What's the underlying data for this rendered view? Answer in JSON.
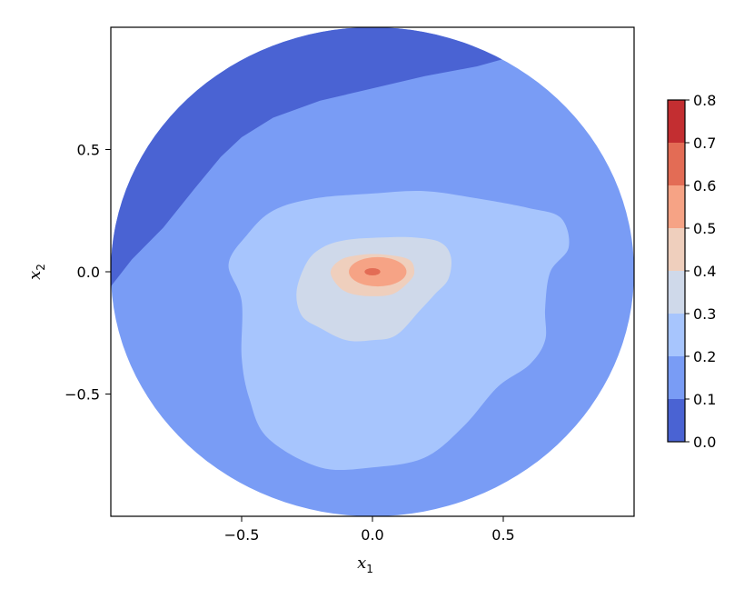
{
  "chart_data": {
    "type": "contourf",
    "domain": "unit disk (x1^2 + x2^2 <= 1)",
    "xlabel": "x",
    "xlabel_sub": "1",
    "ylabel": "x",
    "ylabel_sub": "2",
    "xlim": [
      -1.0,
      1.0
    ],
    "ylim": [
      -1.0,
      1.0
    ],
    "xticks": [
      -0.5,
      0.0,
      0.5
    ],
    "xtick_labels": [
      "−0.5",
      "0.0",
      "0.5"
    ],
    "yticks": [
      -0.5,
      0.0,
      0.5
    ],
    "ytick_labels": [
      "−0.5",
      "0.0",
      "0.5"
    ],
    "colormap": "coolwarm",
    "levels": [
      0.0,
      0.1,
      0.2,
      0.3,
      0.4,
      0.5,
      0.6,
      0.7,
      0.8
    ],
    "level_colors": [
      "#4a63d3",
      "#799cf5",
      "#a7c5fd",
      "#cfd9ea",
      "#efcfbd",
      "#f6a385",
      "#e36c55",
      "#c32e31"
    ],
    "colorbar": {
      "ticks": [
        0.0,
        0.1,
        0.2,
        0.3,
        0.4,
        0.5,
        0.6,
        0.7,
        0.8
      ],
      "tick_labels": [
        "0.0",
        "0.1",
        "0.2",
        "0.3",
        "0.4",
        "0.5",
        "0.6",
        "0.7",
        "0.8"
      ]
    },
    "peak": {
      "x1": 0.0,
      "x2": 0.0,
      "value_range": [
        0.6,
        0.7
      ]
    },
    "regions": [
      {
        "range": [
          0.0,
          0.1
        ],
        "shape": "band along the upper-left rim of the disk",
        "boundary": [
          [
            -1.0,
            -0.06
          ],
          [
            -0.92,
            0.05
          ],
          [
            -0.8,
            0.18
          ],
          [
            -0.68,
            0.34
          ],
          [
            -0.58,
            0.47
          ],
          [
            -0.5,
            0.55
          ],
          [
            -0.38,
            0.63
          ],
          [
            -0.2,
            0.7
          ],
          [
            0.0,
            0.75
          ],
          [
            0.2,
            0.8
          ],
          [
            0.4,
            0.84
          ],
          [
            0.5,
            0.87
          ]
        ]
      },
      {
        "range": [
          0.1,
          0.2
        ],
        "shape": "outer annulus filling the rest of the disk"
      },
      {
        "range": [
          0.2,
          0.3
        ],
        "boundary": [
          [
            -0.5,
            -0.12
          ],
          [
            -0.55,
            0.03
          ],
          [
            -0.48,
            0.15
          ],
          [
            -0.38,
            0.25
          ],
          [
            -0.22,
            0.3
          ],
          [
            0.0,
            0.32
          ],
          [
            0.2,
            0.33
          ],
          [
            0.4,
            0.3
          ],
          [
            0.6,
            0.26
          ],
          [
            0.72,
            0.22
          ],
          [
            0.75,
            0.1
          ],
          [
            0.68,
            0.0
          ],
          [
            0.66,
            -0.15
          ],
          [
            0.66,
            -0.28
          ],
          [
            0.6,
            -0.38
          ],
          [
            0.48,
            -0.47
          ],
          [
            0.35,
            -0.63
          ],
          [
            0.2,
            -0.76
          ],
          [
            0.0,
            -0.8
          ],
          [
            -0.2,
            -0.8
          ],
          [
            -0.4,
            -0.68
          ],
          [
            -0.47,
            -0.52
          ],
          [
            -0.5,
            -0.35
          ]
        ]
      },
      {
        "range": [
          0.3,
          0.4
        ],
        "boundary": [
          [
            -0.29,
            -0.08
          ],
          [
            -0.25,
            0.04
          ],
          [
            -0.19,
            0.1
          ],
          [
            -0.1,
            0.13
          ],
          [
            0.04,
            0.14
          ],
          [
            0.16,
            0.14
          ],
          [
            0.26,
            0.12
          ],
          [
            0.3,
            0.06
          ],
          [
            0.29,
            -0.03
          ],
          [
            0.24,
            -0.09
          ],
          [
            0.18,
            -0.16
          ],
          [
            0.09,
            -0.26
          ],
          [
            0.0,
            -0.28
          ],
          [
            -0.1,
            -0.28
          ],
          [
            -0.2,
            -0.23
          ],
          [
            -0.27,
            -0.18
          ]
        ]
      },
      {
        "range": [
          0.4,
          0.5
        ],
        "boundary": [
          [
            -0.16,
            0.0
          ],
          [
            -0.12,
            0.05
          ],
          [
            -0.04,
            0.07
          ],
          [
            0.05,
            0.07
          ],
          [
            0.14,
            0.05
          ],
          [
            0.16,
            0.0
          ],
          [
            0.14,
            -0.04
          ],
          [
            0.08,
            -0.09
          ],
          [
            0.0,
            -0.1
          ],
          [
            -0.08,
            -0.09
          ],
          [
            -0.13,
            -0.06
          ]
        ]
      },
      {
        "range": [
          0.5,
          0.6
        ],
        "center": [
          0.02,
          0.0
        ],
        "radii": [
          0.11,
          0.06
        ]
      },
      {
        "range": [
          0.6,
          0.7
        ],
        "center": [
          0.0,
          0.0
        ],
        "radii": [
          0.03,
          0.015
        ]
      }
    ]
  }
}
